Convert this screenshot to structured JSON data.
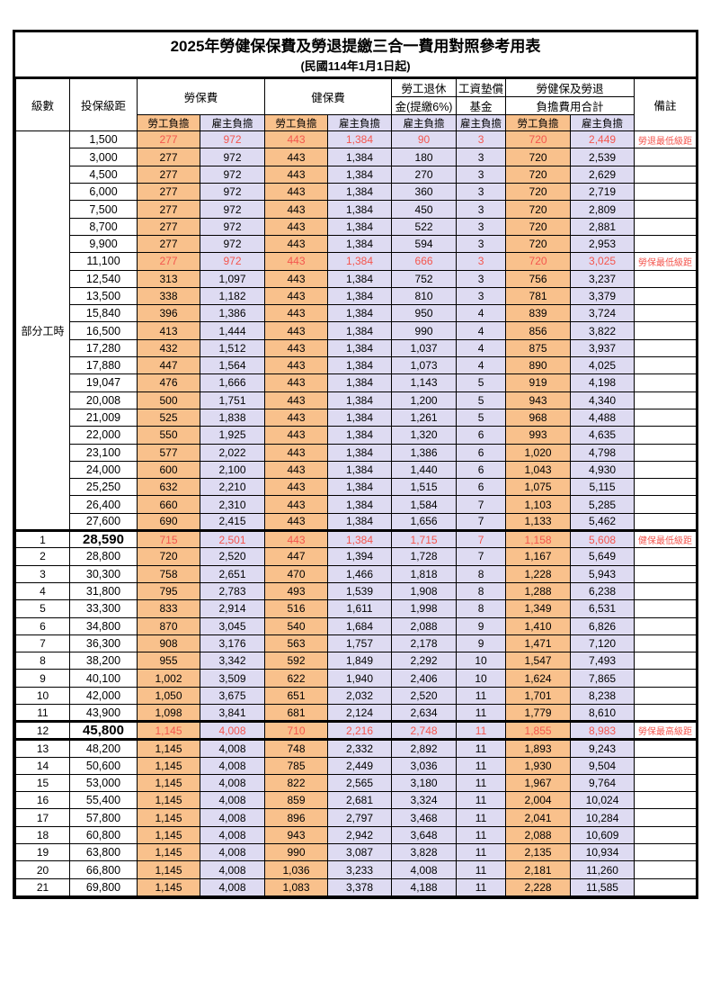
{
  "title": "2025年勞健保保費及勞退提繳三合一費用對照參考用表",
  "subtitle": "(民國114年1月1日起)",
  "colors": {
    "employee_bg": "#F9C18C",
    "employer_bg": "#DEDBF2",
    "highlight_text": "#F4564E",
    "border": "#000000"
  },
  "header": {
    "level": "級數",
    "bracket": "投保級距",
    "labor_fee": "勞保費",
    "health_fee": "健保費",
    "pension_line1": "勞工退休",
    "pension_line2": "金(提繳6%)",
    "wage_fund_line1": "工資墊償",
    "wage_fund_line2": "基金",
    "total_line1": "勞健保及勞退",
    "total_line2": "負擔費用合計",
    "note": "備註",
    "employee_share": "勞工負擔",
    "employer_share": "雇主負擔"
  },
  "part_time_label": "部分工時",
  "part_time_rowspan": 23,
  "rows": [
    {
      "level": "",
      "bracket": "1,500",
      "values": [
        "277",
        "972",
        "443",
        "1,384",
        "90",
        "3",
        "720",
        "2,449"
      ],
      "note": "勞退最低級距",
      "highlight": true,
      "emphasis": false,
      "thick_top": false,
      "thick_bottom": false
    },
    {
      "level": "",
      "bracket": "3,000",
      "values": [
        "277",
        "972",
        "443",
        "1,384",
        "180",
        "3",
        "720",
        "2,539"
      ],
      "note": "",
      "highlight": false,
      "emphasis": false,
      "thick_top": false,
      "thick_bottom": false
    },
    {
      "level": "",
      "bracket": "4,500",
      "values": [
        "277",
        "972",
        "443",
        "1,384",
        "270",
        "3",
        "720",
        "2,629"
      ],
      "note": "",
      "highlight": false,
      "emphasis": false,
      "thick_top": false,
      "thick_bottom": false
    },
    {
      "level": "",
      "bracket": "6,000",
      "values": [
        "277",
        "972",
        "443",
        "1,384",
        "360",
        "3",
        "720",
        "2,719"
      ],
      "note": "",
      "highlight": false,
      "emphasis": false,
      "thick_top": false,
      "thick_bottom": false
    },
    {
      "level": "",
      "bracket": "7,500",
      "values": [
        "277",
        "972",
        "443",
        "1,384",
        "450",
        "3",
        "720",
        "2,809"
      ],
      "note": "",
      "highlight": false,
      "emphasis": false,
      "thick_top": false,
      "thick_bottom": false
    },
    {
      "level": "",
      "bracket": "8,700",
      "values": [
        "277",
        "972",
        "443",
        "1,384",
        "522",
        "3",
        "720",
        "2,881"
      ],
      "note": "",
      "highlight": false,
      "emphasis": false,
      "thick_top": false,
      "thick_bottom": false
    },
    {
      "level": "",
      "bracket": "9,900",
      "values": [
        "277",
        "972",
        "443",
        "1,384",
        "594",
        "3",
        "720",
        "2,953"
      ],
      "note": "",
      "highlight": false,
      "emphasis": false,
      "thick_top": false,
      "thick_bottom": false
    },
    {
      "level": "",
      "bracket": "11,100",
      "values": [
        "277",
        "972",
        "443",
        "1,384",
        "666",
        "3",
        "720",
        "3,025"
      ],
      "note": "勞保最低級距",
      "highlight": true,
      "emphasis": false,
      "thick_top": false,
      "thick_bottom": false
    },
    {
      "level": "",
      "bracket": "12,540",
      "values": [
        "313",
        "1,097",
        "443",
        "1,384",
        "752",
        "3",
        "756",
        "3,237"
      ],
      "note": "",
      "highlight": false,
      "emphasis": false,
      "thick_top": false,
      "thick_bottom": false
    },
    {
      "level": "",
      "bracket": "13,500",
      "values": [
        "338",
        "1,182",
        "443",
        "1,384",
        "810",
        "3",
        "781",
        "3,379"
      ],
      "note": "",
      "highlight": false,
      "emphasis": false,
      "thick_top": false,
      "thick_bottom": false
    },
    {
      "level": "",
      "bracket": "15,840",
      "values": [
        "396",
        "1,386",
        "443",
        "1,384",
        "950",
        "4",
        "839",
        "3,724"
      ],
      "note": "",
      "highlight": false,
      "emphasis": false,
      "thick_top": false,
      "thick_bottom": false
    },
    {
      "level": "",
      "bracket": "16,500",
      "values": [
        "413",
        "1,444",
        "443",
        "1,384",
        "990",
        "4",
        "856",
        "3,822"
      ],
      "note": "",
      "highlight": false,
      "emphasis": false,
      "thick_top": false,
      "thick_bottom": false
    },
    {
      "level": "",
      "bracket": "17,280",
      "values": [
        "432",
        "1,512",
        "443",
        "1,384",
        "1,037",
        "4",
        "875",
        "3,937"
      ],
      "note": "",
      "highlight": false,
      "emphasis": false,
      "thick_top": false,
      "thick_bottom": false
    },
    {
      "level": "",
      "bracket": "17,880",
      "values": [
        "447",
        "1,564",
        "443",
        "1,384",
        "1,073",
        "4",
        "890",
        "4,025"
      ],
      "note": "",
      "highlight": false,
      "emphasis": false,
      "thick_top": false,
      "thick_bottom": false
    },
    {
      "level": "",
      "bracket": "19,047",
      "values": [
        "476",
        "1,666",
        "443",
        "1,384",
        "1,143",
        "5",
        "919",
        "4,198"
      ],
      "note": "",
      "highlight": false,
      "emphasis": false,
      "thick_top": false,
      "thick_bottom": false
    },
    {
      "level": "",
      "bracket": "20,008",
      "values": [
        "500",
        "1,751",
        "443",
        "1,384",
        "1,200",
        "5",
        "943",
        "4,340"
      ],
      "note": "",
      "highlight": false,
      "emphasis": false,
      "thick_top": false,
      "thick_bottom": false
    },
    {
      "level": "",
      "bracket": "21,009",
      "values": [
        "525",
        "1,838",
        "443",
        "1,384",
        "1,261",
        "5",
        "968",
        "4,488"
      ],
      "note": "",
      "highlight": false,
      "emphasis": false,
      "thick_top": false,
      "thick_bottom": false
    },
    {
      "level": "",
      "bracket": "22,000",
      "values": [
        "550",
        "1,925",
        "443",
        "1,384",
        "1,320",
        "6",
        "993",
        "4,635"
      ],
      "note": "",
      "highlight": false,
      "emphasis": false,
      "thick_top": false,
      "thick_bottom": false
    },
    {
      "level": "",
      "bracket": "23,100",
      "values": [
        "577",
        "2,022",
        "443",
        "1,384",
        "1,386",
        "6",
        "1,020",
        "4,798"
      ],
      "note": "",
      "highlight": false,
      "emphasis": false,
      "thick_top": false,
      "thick_bottom": false
    },
    {
      "level": "",
      "bracket": "24,000",
      "values": [
        "600",
        "2,100",
        "443",
        "1,384",
        "1,440",
        "6",
        "1,043",
        "4,930"
      ],
      "note": "",
      "highlight": false,
      "emphasis": false,
      "thick_top": false,
      "thick_bottom": false
    },
    {
      "level": "",
      "bracket": "25,250",
      "values": [
        "632",
        "2,210",
        "443",
        "1,384",
        "1,515",
        "6",
        "1,075",
        "5,115"
      ],
      "note": "",
      "highlight": false,
      "emphasis": false,
      "thick_top": false,
      "thick_bottom": false
    },
    {
      "level": "",
      "bracket": "26,400",
      "values": [
        "660",
        "2,310",
        "443",
        "1,384",
        "1,584",
        "7",
        "1,103",
        "5,285"
      ],
      "note": "",
      "highlight": false,
      "emphasis": false,
      "thick_top": false,
      "thick_bottom": false
    },
    {
      "level": "",
      "bracket": "27,600",
      "values": [
        "690",
        "2,415",
        "443",
        "1,384",
        "1,656",
        "7",
        "1,133",
        "5,462"
      ],
      "note": "",
      "highlight": false,
      "emphasis": false,
      "thick_top": false,
      "thick_bottom": false
    },
    {
      "level": "1",
      "bracket": "28,590",
      "values": [
        "715",
        "2,501",
        "443",
        "1,384",
        "1,715",
        "7",
        "1,158",
        "5,608"
      ],
      "note": "健保最低級距",
      "highlight": true,
      "emphasis": true,
      "thick_top": true,
      "thick_bottom": false
    },
    {
      "level": "2",
      "bracket": "28,800",
      "values": [
        "720",
        "2,520",
        "447",
        "1,394",
        "1,728",
        "7",
        "1,167",
        "5,649"
      ],
      "note": "",
      "highlight": false,
      "emphasis": false,
      "thick_top": false,
      "thick_bottom": false
    },
    {
      "level": "3",
      "bracket": "30,300",
      "values": [
        "758",
        "2,651",
        "470",
        "1,466",
        "1,818",
        "8",
        "1,228",
        "5,943"
      ],
      "note": "",
      "highlight": false,
      "emphasis": false,
      "thick_top": false,
      "thick_bottom": false
    },
    {
      "level": "4",
      "bracket": "31,800",
      "values": [
        "795",
        "2,783",
        "493",
        "1,539",
        "1,908",
        "8",
        "1,288",
        "6,238"
      ],
      "note": "",
      "highlight": false,
      "emphasis": false,
      "thick_top": false,
      "thick_bottom": false
    },
    {
      "level": "5",
      "bracket": "33,300",
      "values": [
        "833",
        "2,914",
        "516",
        "1,611",
        "1,998",
        "8",
        "1,349",
        "6,531"
      ],
      "note": "",
      "highlight": false,
      "emphasis": false,
      "thick_top": false,
      "thick_bottom": false
    },
    {
      "level": "6",
      "bracket": "34,800",
      "values": [
        "870",
        "3,045",
        "540",
        "1,684",
        "2,088",
        "9",
        "1,410",
        "6,826"
      ],
      "note": "",
      "highlight": false,
      "emphasis": false,
      "thick_top": false,
      "thick_bottom": false
    },
    {
      "level": "7",
      "bracket": "36,300",
      "values": [
        "908",
        "3,176",
        "563",
        "1,757",
        "2,178",
        "9",
        "1,471",
        "7,120"
      ],
      "note": "",
      "highlight": false,
      "emphasis": false,
      "thick_top": false,
      "thick_bottom": false
    },
    {
      "level": "8",
      "bracket": "38,200",
      "values": [
        "955",
        "3,342",
        "592",
        "1,849",
        "2,292",
        "10",
        "1,547",
        "7,493"
      ],
      "note": "",
      "highlight": false,
      "emphasis": false,
      "thick_top": false,
      "thick_bottom": false
    },
    {
      "level": "9",
      "bracket": "40,100",
      "values": [
        "1,002",
        "3,509",
        "622",
        "1,940",
        "2,406",
        "10",
        "1,624",
        "7,865"
      ],
      "note": "",
      "highlight": false,
      "emphasis": false,
      "thick_top": false,
      "thick_bottom": false
    },
    {
      "level": "10",
      "bracket": "42,000",
      "values": [
        "1,050",
        "3,675",
        "651",
        "2,032",
        "2,520",
        "11",
        "1,701",
        "8,238"
      ],
      "note": "",
      "highlight": false,
      "emphasis": false,
      "thick_top": false,
      "thick_bottom": false
    },
    {
      "level": "11",
      "bracket": "43,900",
      "values": [
        "1,098",
        "3,841",
        "681",
        "2,124",
        "2,634",
        "11",
        "1,779",
        "8,610"
      ],
      "note": "",
      "highlight": false,
      "emphasis": false,
      "thick_top": false,
      "thick_bottom": false
    },
    {
      "level": "12",
      "bracket": "45,800",
      "values": [
        "1,145",
        "4,008",
        "710",
        "2,216",
        "2,748",
        "11",
        "1,855",
        "8,983"
      ],
      "note": "勞保最高級距",
      "highlight": true,
      "emphasis": true,
      "thick_top": true,
      "thick_bottom": true
    },
    {
      "level": "13",
      "bracket": "48,200",
      "values": [
        "1,145",
        "4,008",
        "748",
        "2,332",
        "2,892",
        "11",
        "1,893",
        "9,243"
      ],
      "note": "",
      "highlight": false,
      "emphasis": false,
      "thick_top": false,
      "thick_bottom": false
    },
    {
      "level": "14",
      "bracket": "50,600",
      "values": [
        "1,145",
        "4,008",
        "785",
        "2,449",
        "3,036",
        "11",
        "1,930",
        "9,504"
      ],
      "note": "",
      "highlight": false,
      "emphasis": false,
      "thick_top": false,
      "thick_bottom": false
    },
    {
      "level": "15",
      "bracket": "53,000",
      "values": [
        "1,145",
        "4,008",
        "822",
        "2,565",
        "3,180",
        "11",
        "1,967",
        "9,764"
      ],
      "note": "",
      "highlight": false,
      "emphasis": false,
      "thick_top": false,
      "thick_bottom": false
    },
    {
      "level": "16",
      "bracket": "55,400",
      "values": [
        "1,145",
        "4,008",
        "859",
        "2,681",
        "3,324",
        "11",
        "2,004",
        "10,024"
      ],
      "note": "",
      "highlight": false,
      "emphasis": false,
      "thick_top": false,
      "thick_bottom": false
    },
    {
      "level": "17",
      "bracket": "57,800",
      "values": [
        "1,145",
        "4,008",
        "896",
        "2,797",
        "3,468",
        "11",
        "2,041",
        "10,284"
      ],
      "note": "",
      "highlight": false,
      "emphasis": false,
      "thick_top": false,
      "thick_bottom": false
    },
    {
      "level": "18",
      "bracket": "60,800",
      "values": [
        "1,145",
        "4,008",
        "943",
        "2,942",
        "3,648",
        "11",
        "2,088",
        "10,609"
      ],
      "note": "",
      "highlight": false,
      "emphasis": false,
      "thick_top": false,
      "thick_bottom": false
    },
    {
      "level": "19",
      "bracket": "63,800",
      "values": [
        "1,145",
        "4,008",
        "990",
        "3,087",
        "3,828",
        "11",
        "2,135",
        "10,934"
      ],
      "note": "",
      "highlight": false,
      "emphasis": false,
      "thick_top": false,
      "thick_bottom": false
    },
    {
      "level": "20",
      "bracket": "66,800",
      "values": [
        "1,145",
        "4,008",
        "1,036",
        "3,233",
        "4,008",
        "11",
        "2,181",
        "11,260"
      ],
      "note": "",
      "highlight": false,
      "emphasis": false,
      "thick_top": false,
      "thick_bottom": false
    },
    {
      "level": "21",
      "bracket": "69,800",
      "values": [
        "1,145",
        "4,008",
        "1,083",
        "3,378",
        "4,188",
        "11",
        "2,228",
        "11,585"
      ],
      "note": "",
      "highlight": false,
      "emphasis": false,
      "thick_top": false,
      "thick_bottom": false
    }
  ]
}
